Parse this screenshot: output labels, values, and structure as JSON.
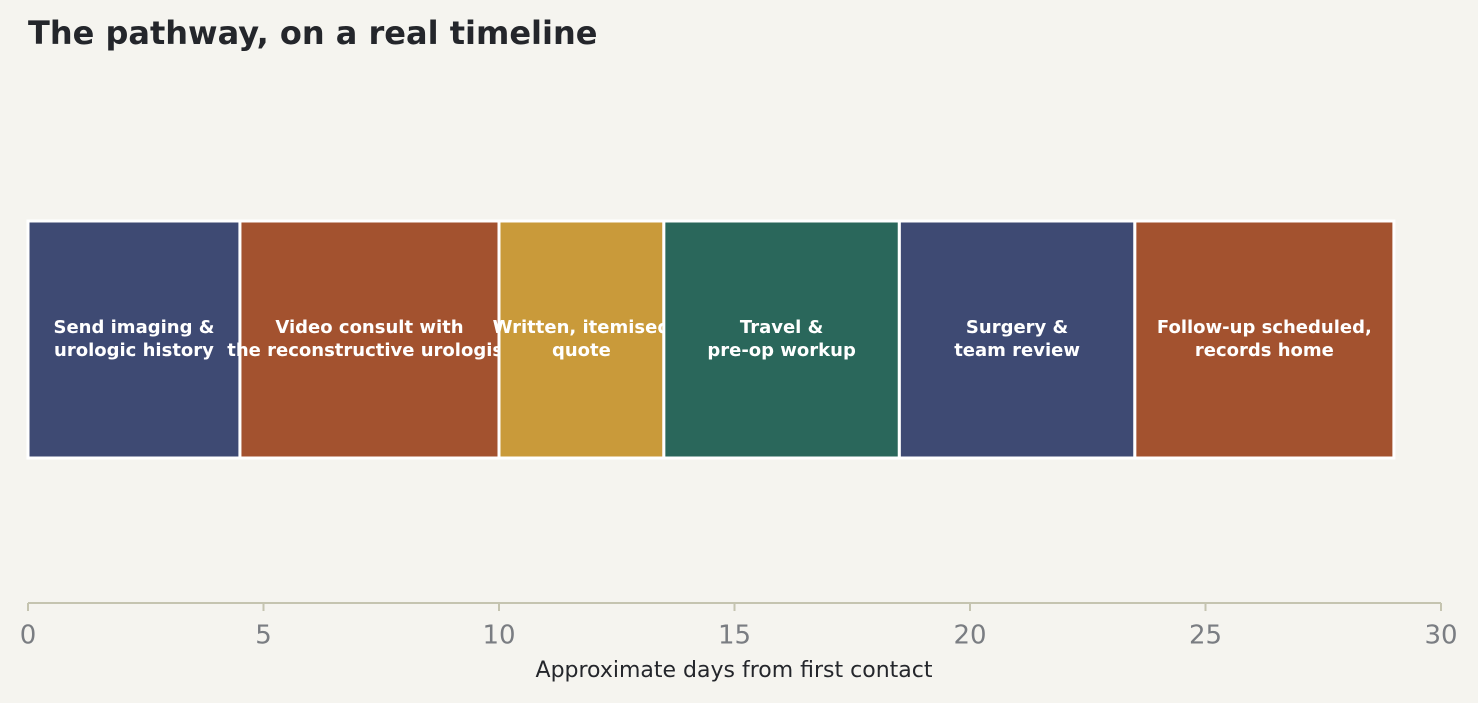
{
  "chart_data": {
    "type": "timeline",
    "title": "The pathway, on a real timeline",
    "xlabel": "Approximate days from first contact",
    "xlim": [
      0,
      30
    ],
    "xticks": [
      0,
      5,
      10,
      15,
      20,
      25,
      30
    ],
    "tasks": [
      {
        "label": [
          "Send imaging &",
          "urologic history"
        ],
        "start": 0,
        "duration": 4.5,
        "color": "#3e4a73"
      },
      {
        "label": [
          "Video consult with",
          "the reconstructive urologist"
        ],
        "start": 4.5,
        "duration": 5.5,
        "color": "#a3522f"
      },
      {
        "label": [
          "Written, itemised",
          "quote"
        ],
        "start": 10,
        "duration": 3.5,
        "color": "#c99a3a"
      },
      {
        "label": [
          "Travel &",
          "pre-op workup"
        ],
        "start": 13.5,
        "duration": 5,
        "color": "#2a675b"
      },
      {
        "label": [
          "Surgery &",
          "team review"
        ],
        "start": 18.5,
        "duration": 5,
        "color": "#3e4a73"
      },
      {
        "label": [
          "Follow-up scheduled,",
          "records home"
        ],
        "start": 23.5,
        "duration": 5.5,
        "color": "#a3522f"
      }
    ]
  }
}
